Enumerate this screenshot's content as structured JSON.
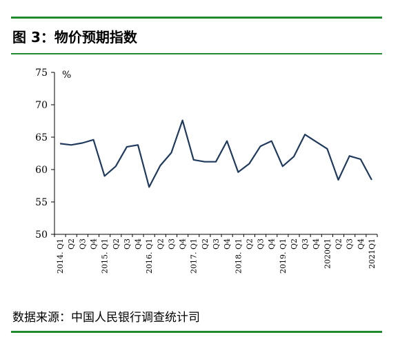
{
  "figure": {
    "title": "图 3：物价预期指数",
    "source": "数据来源：中国人民银行调查统计司"
  },
  "colors": {
    "rule": "#1f8a2e",
    "line": "#1f3a5c",
    "axis": "#000000"
  },
  "chart_data": {
    "type": "line",
    "unit_label": "%",
    "ylim": [
      50,
      75
    ],
    "yticks": [
      50,
      55,
      60,
      65,
      70,
      75
    ],
    "grid": false,
    "legend": "none",
    "categories": [
      "2014. Q1",
      "Q2",
      "Q3",
      "Q4",
      "2015. Q1",
      "Q2",
      "Q3",
      "Q4",
      "2016. Q1",
      "Q2",
      "Q3",
      "Q4",
      "2017. Q1",
      "Q2",
      "Q3",
      "Q4",
      "2018. Q1",
      "Q2",
      "Q3",
      "Q4",
      "2019. Q1",
      "Q2",
      "Q3",
      "Q4",
      "2020Q1",
      "Q2",
      "Q3",
      "Q4",
      "2021Q1"
    ],
    "series": [
      {
        "values": [
          64.0,
          63.8,
          64.1,
          64.6,
          59.0,
          60.5,
          63.5,
          63.8,
          57.3,
          60.6,
          62.6,
          67.6,
          61.5,
          61.2,
          61.2,
          64.4,
          59.6,
          60.9,
          63.6,
          64.4,
          60.5,
          62.0,
          65.4,
          64.3,
          63.2,
          58.4,
          62.1,
          61.6,
          58.4
        ]
      }
    ]
  }
}
